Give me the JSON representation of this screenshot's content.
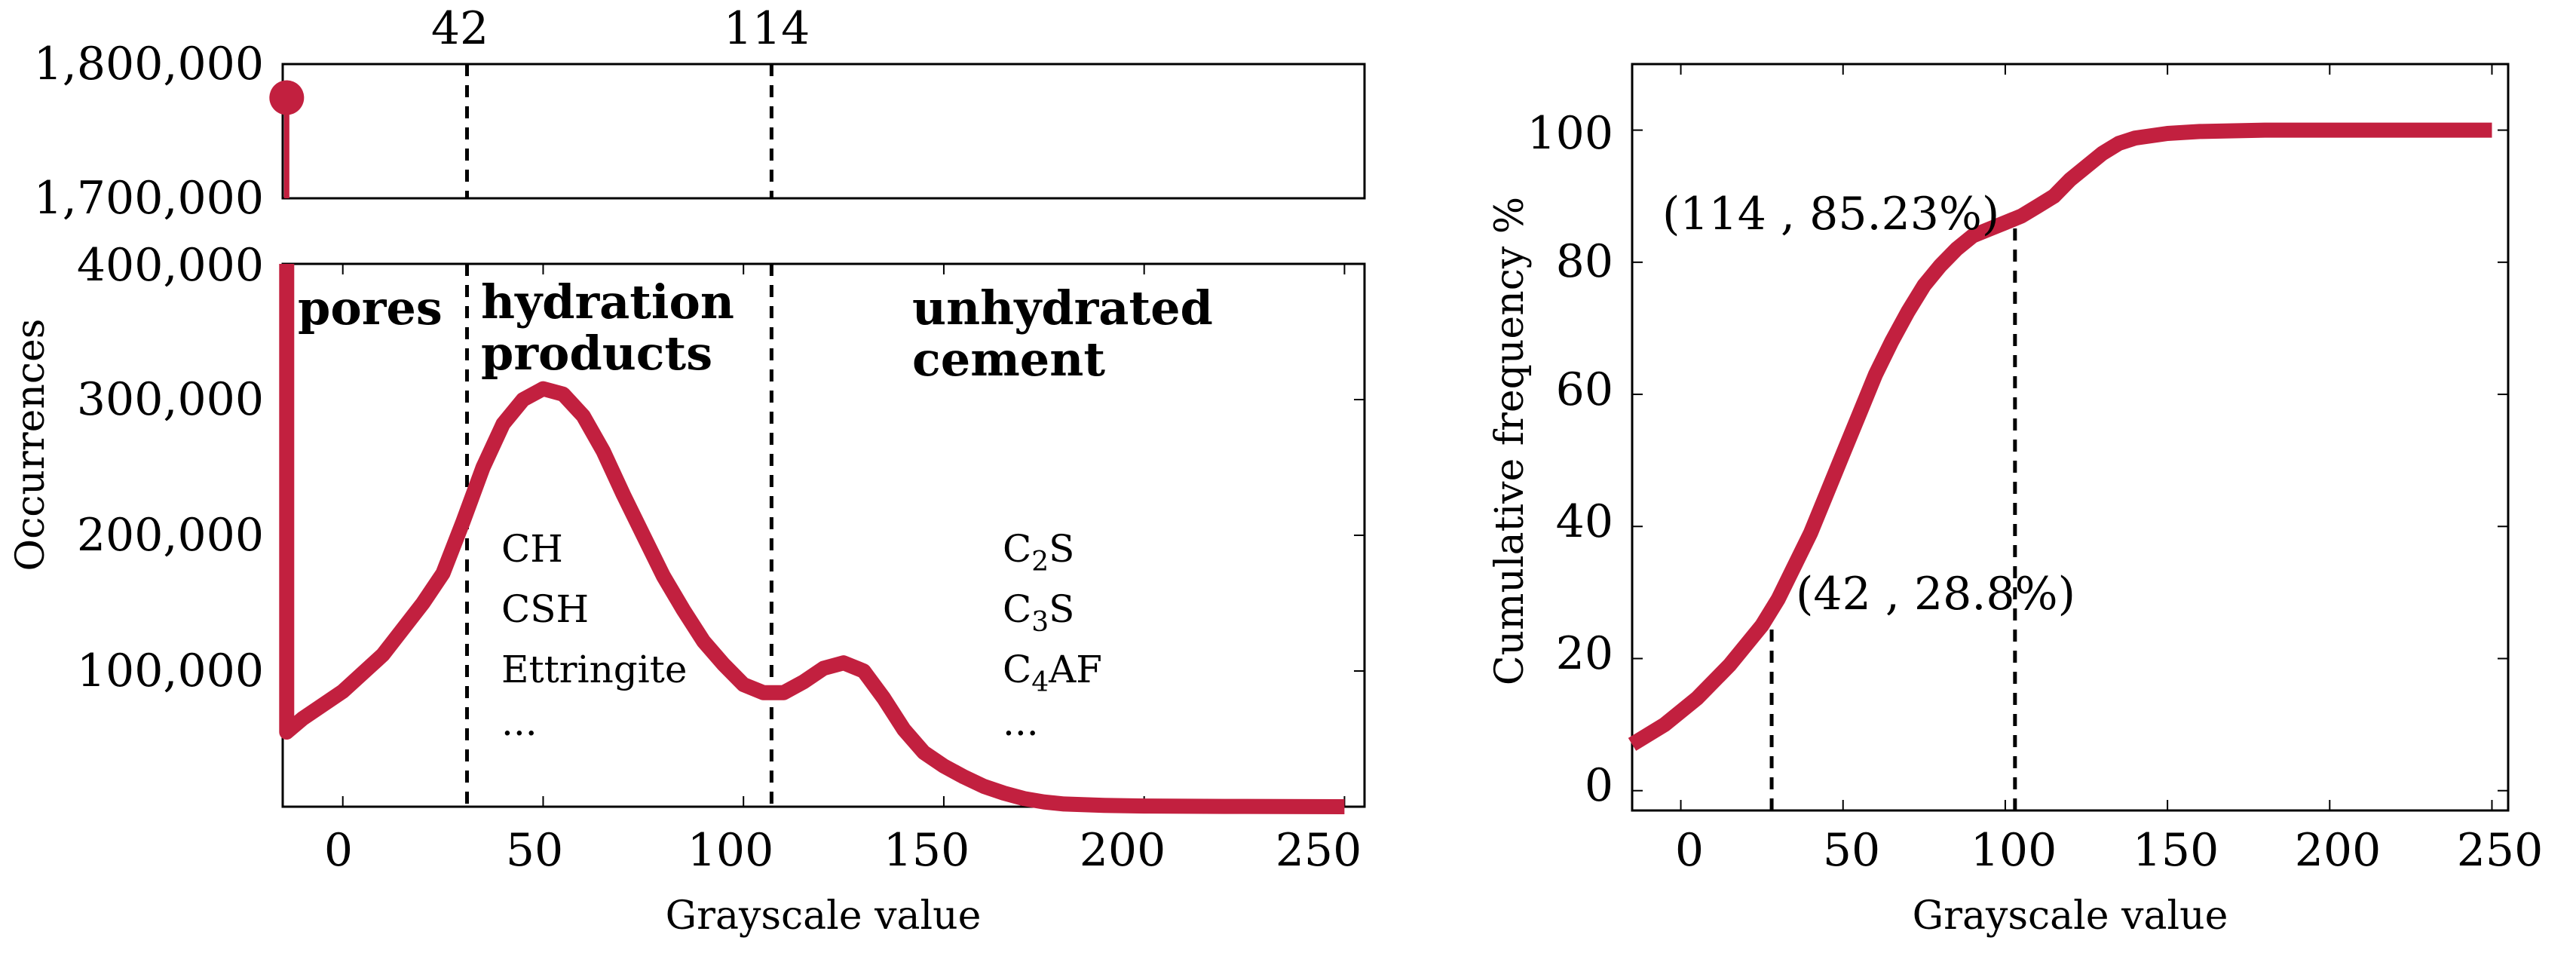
{
  "chart_data": [
    {
      "id": "histogram",
      "type": "line",
      "xlabel": "Grayscale value",
      "ylabel": "Occurrences",
      "x_ticks": [
        "0",
        "50",
        "100",
        "150",
        "200",
        "250"
      ],
      "xlim": [
        -15,
        255
      ],
      "upper_panel": {
        "ylim": [
          1700000,
          1800000
        ],
        "y_ticks": [
          "1,700,000",
          "1,800,000"
        ],
        "stem_point": {
          "x": -14,
          "y": 1775000
        }
      },
      "lower_panel": {
        "ylim": [
          0,
          400000
        ],
        "y_ticks": [
          "100,000",
          "200,000",
          "300,000",
          "400,000"
        ]
      },
      "markers": [
        {
          "label": "42",
          "x": 31
        },
        {
          "label": "114",
          "x": 107
        }
      ],
      "regions": [
        {
          "line1": "pores",
          "line2": ""
        },
        {
          "line1": "hydration",
          "line2": "products"
        },
        {
          "line1": "unhydrated",
          "line2": "cement"
        }
      ],
      "phase_lists": [
        {
          "items": [
            "CH",
            "CSH",
            "Ettringite",
            "..."
          ]
        },
        {
          "items": [
            {
              "base": "C",
              "sub": "2",
              "tail": "S"
            },
            {
              "base": "C",
              "sub": "3",
              "tail": "S"
            },
            {
              "base": "C",
              "sub": "4",
              "tail": "AF"
            },
            {
              "base": "...",
              "sub": "",
              "tail": ""
            }
          ]
        }
      ],
      "series": [
        {
          "color": "#c2203f",
          "points": [
            [
              -14,
              400000
            ],
            [
              -14,
              55000
            ],
            [
              -10,
              65000
            ],
            [
              0,
              85000
            ],
            [
              10,
              112000
            ],
            [
              20,
              150000
            ],
            [
              25,
              172000
            ],
            [
              30,
              210000
            ],
            [
              35,
              250000
            ],
            [
              40,
              282000
            ],
            [
              45,
              300000
            ],
            [
              50,
              308000
            ],
            [
              55,
              304000
            ],
            [
              60,
              288000
            ],
            [
              65,
              262000
            ],
            [
              70,
              230000
            ],
            [
              75,
              200000
            ],
            [
              80,
              170000
            ],
            [
              85,
              145000
            ],
            [
              90,
              122000
            ],
            [
              95,
              105000
            ],
            [
              100,
              90000
            ],
            [
              105,
              84000
            ],
            [
              110,
              84000
            ],
            [
              115,
              92000
            ],
            [
              120,
              102000
            ],
            [
              125,
              106000
            ],
            [
              130,
              100000
            ],
            [
              135,
              80000
            ],
            [
              140,
              57000
            ],
            [
              145,
              40000
            ],
            [
              150,
              30000
            ],
            [
              155,
              22000
            ],
            [
              160,
              15000
            ],
            [
              165,
              10000
            ],
            [
              170,
              6000
            ],
            [
              175,
              3500
            ],
            [
              180,
              2000
            ],
            [
              190,
              1000
            ],
            [
              200,
              500
            ],
            [
              220,
              200
            ],
            [
              250,
              0
            ]
          ]
        }
      ]
    },
    {
      "id": "cumulative",
      "type": "line",
      "xlabel": "Grayscale value",
      "ylabel": "Cumulative frequency %",
      "x_ticks": [
        "0",
        "50",
        "100",
        "150",
        "200",
        "250"
      ],
      "y_ticks": [
        "0",
        "20",
        "40",
        "60",
        "80",
        "100"
      ],
      "xlim": [
        -15,
        255
      ],
      "ylim": [
        -3,
        110
      ],
      "markers": [
        {
          "x": 28,
          "y": 28.8,
          "label": "(42 , 28.8%)"
        },
        {
          "x": 103,
          "y": 85.23,
          "label": "(114 , 85.23%)"
        }
      ],
      "series": [
        {
          "color": "#c2203f",
          "points": [
            [
              -15,
              7
            ],
            [
              -5,
              10
            ],
            [
              5,
              14
            ],
            [
              15,
              19
            ],
            [
              25,
              25
            ],
            [
              30,
              29
            ],
            [
              35,
              34
            ],
            [
              40,
              39
            ],
            [
              45,
              45
            ],
            [
              50,
              51
            ],
            [
              55,
              57
            ],
            [
              60,
              63
            ],
            [
              65,
              68
            ],
            [
              70,
              72.5
            ],
            [
              75,
              76.5
            ],
            [
              80,
              79.5
            ],
            [
              85,
              82
            ],
            [
              90,
              84
            ],
            [
              95,
              85
            ],
            [
              100,
              86
            ],
            [
              105,
              87
            ],
            [
              110,
              88.5
            ],
            [
              115,
              90
            ],
            [
              120,
              92.5
            ],
            [
              125,
              94.5
            ],
            [
              130,
              96.5
            ],
            [
              135,
              98
            ],
            [
              140,
              98.8
            ],
            [
              150,
              99.5
            ],
            [
              160,
              99.8
            ],
            [
              180,
              100
            ],
            [
              200,
              100
            ],
            [
              250,
              100
            ]
          ]
        }
      ]
    }
  ]
}
